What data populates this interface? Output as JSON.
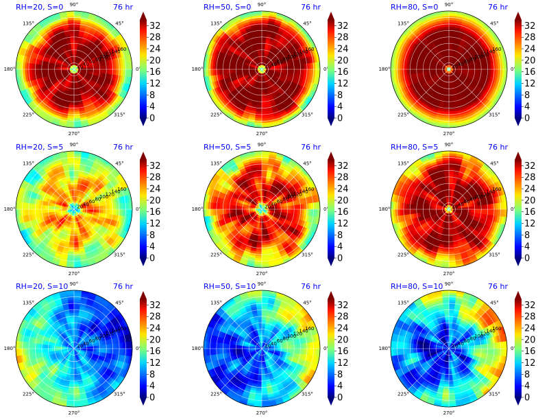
{
  "chart_data": {
    "type": "polar_contour_grid",
    "colorbar": {
      "ticks": [
        "0",
        "4",
        "8",
        "12",
        "16",
        "20",
        "24",
        "28",
        "32"
      ],
      "range": [
        0,
        34
      ],
      "colormap": "jet",
      "extend": "both"
    },
    "angular_ticks": [
      "0°",
      "45°",
      "90°",
      "135°",
      "180°",
      "225°",
      "270°",
      "315°"
    ],
    "radial_ticks": [
      "20",
      "40",
      "60",
      "80",
      "100",
      "120",
      "140",
      "160"
    ],
    "radial_max": 180,
    "panels": [
      {
        "title": "RH=20, S=0",
        "time": "76 hr",
        "profile": [
          [
            0,
            16
          ],
          [
            0.05,
            16
          ],
          [
            0.09,
            33
          ],
          [
            0.55,
            34
          ],
          [
            0.7,
            30
          ],
          [
            0.82,
            25
          ],
          [
            0.9,
            19
          ],
          [
            1.0,
            17
          ]
        ],
        "noise": 4,
        "noise_scale": 0.55
      },
      {
        "title": "RH=50, S=0",
        "time": "76 hr",
        "profile": [
          [
            0,
            16
          ],
          [
            0.05,
            16
          ],
          [
            0.08,
            34
          ],
          [
            0.7,
            34
          ],
          [
            0.8,
            30
          ],
          [
            0.88,
            26
          ],
          [
            0.94,
            20
          ],
          [
            1.0,
            17
          ]
        ],
        "noise": 4,
        "noise_scale": 0.55
      },
      {
        "title": "RH=80, S=0",
        "time": "76 hr",
        "profile": [
          [
            0,
            16
          ],
          [
            0.04,
            16
          ],
          [
            0.07,
            34
          ],
          [
            0.68,
            34
          ],
          [
            0.8,
            28
          ],
          [
            0.9,
            23
          ],
          [
            0.96,
            19
          ],
          [
            1.0,
            18
          ]
        ],
        "noise": 1,
        "noise_scale": 0.4
      },
      {
        "title": "RH=20, S=5",
        "time": "76 hr",
        "profile": [
          [
            0,
            10
          ],
          [
            0.08,
            14
          ],
          [
            0.15,
            25
          ],
          [
            0.35,
            24
          ],
          [
            0.6,
            22
          ],
          [
            0.8,
            19
          ],
          [
            1.0,
            16
          ]
        ],
        "noise": 5,
        "noise_scale": 0.7
      },
      {
        "title": "RH=50, S=5",
        "time": "76 hr",
        "profile": [
          [
            0,
            11
          ],
          [
            0.08,
            18
          ],
          [
            0.15,
            30
          ],
          [
            0.55,
            30
          ],
          [
            0.75,
            26
          ],
          [
            0.9,
            21
          ],
          [
            1.0,
            18
          ]
        ],
        "noise": 6,
        "noise_scale": 0.7
      },
      {
        "title": "RH=80, S=5",
        "time": "76 hr",
        "profile": [
          [
            0,
            16
          ],
          [
            0.04,
            16
          ],
          [
            0.08,
            33
          ],
          [
            0.55,
            33
          ],
          [
            0.75,
            30
          ],
          [
            0.9,
            24
          ],
          [
            1.0,
            20
          ]
        ],
        "noise": 5,
        "noise_scale": 0.6
      },
      {
        "title": "RH=20, S=10",
        "time": "76 hr",
        "profile": [
          [
            0,
            9
          ],
          [
            0.4,
            10
          ],
          [
            0.7,
            11
          ],
          [
            1.0,
            12
          ]
        ],
        "noise": 4,
        "noise_scale": 0.8
      },
      {
        "title": "RH=50, S=10",
        "time": "76 hr",
        "profile": [
          [
            0,
            7
          ],
          [
            0.4,
            9
          ],
          [
            0.7,
            12
          ],
          [
            1.0,
            14
          ]
        ],
        "noise": 5,
        "noise_scale": 0.7
      },
      {
        "title": "RH=80, S=10",
        "time": "76 hr",
        "profile": [
          [
            0,
            5
          ],
          [
            0.4,
            7
          ],
          [
            0.7,
            14
          ],
          [
            1.0,
            17
          ]
        ],
        "noise": 6,
        "noise_scale": 0.6
      }
    ]
  }
}
